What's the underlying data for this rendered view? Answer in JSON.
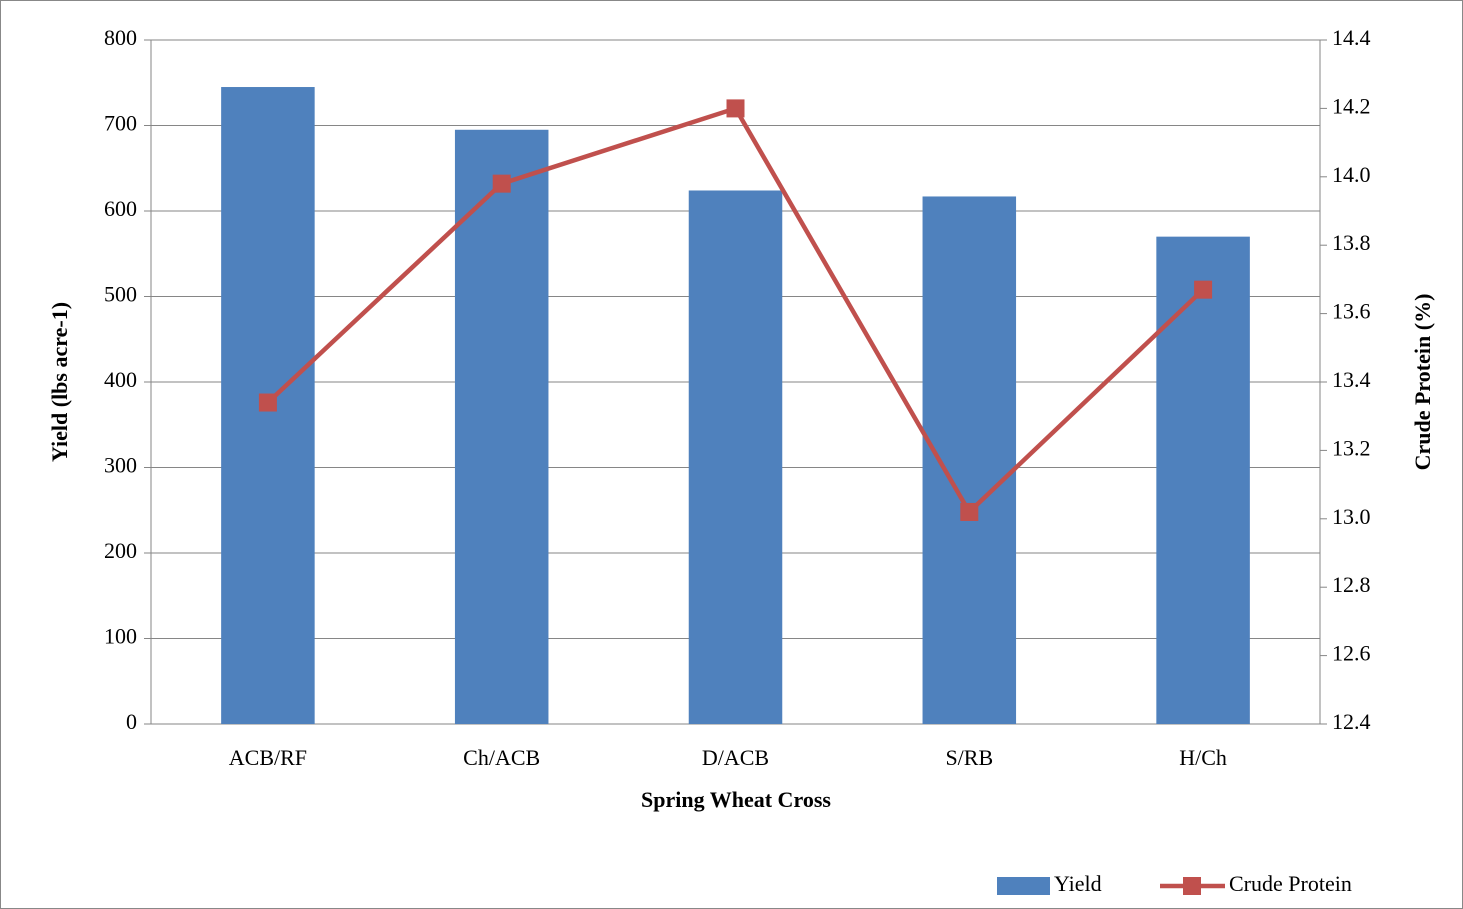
{
  "chart_data": {
    "type": "bar_line",
    "x_label": "Spring Wheat Cross",
    "y_label": "Yield (lbs acre-1)",
    "y2_label": "Crude Protein (%)",
    "categories": [
      "ACB/RF",
      "Ch/ACB",
      "D/ACB",
      "S/RB",
      "H/Ch"
    ],
    "series": [
      {
        "name": "Yield",
        "type": "bar",
        "color": "#4f81bd",
        "values": [
          745,
          695,
          624,
          617,
          570
        ]
      },
      {
        "name": "Crude Protein",
        "type": "line",
        "axis": "y2",
        "color": "#c0504d",
        "values": [
          13.34,
          13.98,
          14.2,
          13.02,
          13.67
        ]
      }
    ],
    "ylim": [
      0,
      800
    ],
    "yticks": [
      0,
      100,
      200,
      300,
      400,
      500,
      600,
      700,
      800
    ],
    "y2lim": [
      12.4,
      14.4
    ],
    "y2ticks": [
      12.4,
      12.6,
      12.8,
      {
        "value": 13,
        "label": "13.0"
      },
      13.2,
      13.4,
      13.6,
      13.8,
      {
        "value": 14,
        "label": "14.0"
      },
      14.2,
      14.4
    ],
    "grid": true,
    "legend": "bottom-right"
  }
}
